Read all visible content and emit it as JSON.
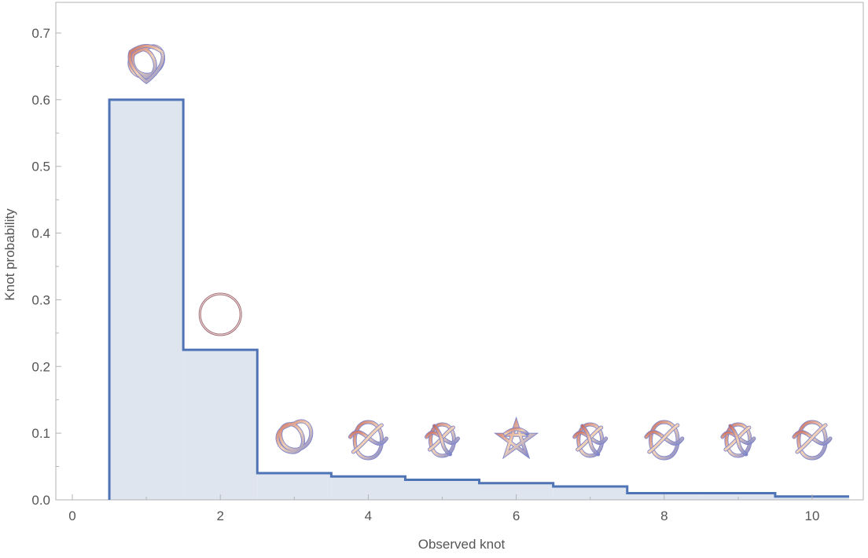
{
  "chart_data": {
    "type": "area",
    "interpolation": "step",
    "title": "",
    "xlabel": "Observed knot",
    "ylabel": "Knot probability",
    "xlim": [
      0,
      10.5
    ],
    "ylim": [
      0,
      0.75
    ],
    "xticks": [
      "0",
      "2",
      "4",
      "6",
      "8",
      "10"
    ],
    "yticks": [
      "0.0",
      "0.1",
      "0.2",
      "0.3",
      "0.4",
      "0.5",
      "0.6",
      "0.7"
    ],
    "x": [
      1,
      2,
      3,
      4,
      5,
      6,
      7,
      8,
      9,
      10
    ],
    "values": [
      0.6,
      0.225,
      0.04,
      0.035,
      0.03,
      0.025,
      0.02,
      0.01,
      0.01,
      0.005
    ],
    "knot_images": [
      "trefoil-pair-knot",
      "unknot",
      "trefoil-knot",
      "compound-knot",
      "compound-knot",
      "cinquefoil-knot",
      "compound-knot",
      "compound-knot",
      "compound-knot",
      "compound-knot"
    ],
    "grid": false,
    "colors": {
      "line": "#4e74b5",
      "fill": "#dfe5ef",
      "frame": "#b3b3b3"
    }
  }
}
